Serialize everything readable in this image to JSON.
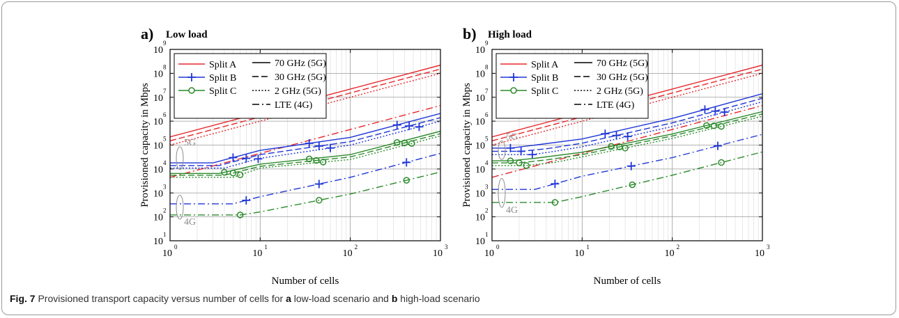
{
  "figure": {
    "caption": {
      "fig_label": "Fig. 7",
      "text_1": "Provisioned transport capacity versus number of cells for",
      "label_a": "a",
      "text_2": "low-load scenario and",
      "label_b": "b",
      "text_3": "high-load scenario"
    }
  },
  "chart_data": [
    {
      "type": "line",
      "panel_letter": "a)",
      "title": "Low load",
      "xlabel": "Number of cells",
      "ylabel": "Provisioned capacity in Mbps",
      "xscale": "log",
      "yscale": "log",
      "xlim": [
        1,
        1000
      ],
      "ylim": [
        10,
        1000000000
      ],
      "x_ticks": [
        1,
        10,
        100,
        1000
      ],
      "y_ticks": [
        10,
        100,
        1000,
        10000,
        100000,
        1000000,
        10000000,
        100000000,
        1000000000
      ],
      "grid": true,
      "legend_position": "top-left",
      "legend_splits": [
        {
          "name": "Split A",
          "color": "#e8262a",
          "marker": "none"
        },
        {
          "name": "Split B",
          "color": "#1f36d6",
          "marker": "plus"
        },
        {
          "name": "Split C",
          "color": "#2a8a2a",
          "marker": "circle"
        }
      ],
      "legend_techs": [
        {
          "name": "70 GHz (5G)",
          "dash": "solid"
        },
        {
          "name": "30 GHz (5G)",
          "dash": "dashed"
        },
        {
          "name": "2 GHz (5G)",
          "dash": "dotted"
        },
        {
          "name": "LTE (4G)",
          "dash": "dashdot"
        }
      ],
      "annotations": [
        "5G",
        "4G"
      ],
      "annotation_ranges": [
        [
          85000,
          9500
        ],
        [
          800,
          80
        ]
      ],
      "series": [
        {
          "split": "A",
          "tech": "70 GHz",
          "points": [
            [
              1,
              220000
            ],
            [
              1000,
              220000000
            ]
          ]
        },
        {
          "split": "A",
          "tech": "30 GHz",
          "points": [
            [
              1,
              150000
            ],
            [
              1000,
              150000000
            ]
          ]
        },
        {
          "split": "A",
          "tech": "2 GHz",
          "points": [
            [
              1,
              100000
            ],
            [
              1000,
              100000000
            ]
          ]
        },
        {
          "split": "A",
          "tech": "LTE",
          "points": [
            [
              1,
              4500
            ],
            [
              1000,
              4500000
            ]
          ]
        },
        {
          "split": "B",
          "tech": "70 GHz",
          "points": [
            [
              1,
              18000
            ],
            [
              3,
              18000
            ],
            [
              10,
              60000
            ],
            [
              100,
              210000
            ],
            [
              1000,
              2100000
            ]
          ],
          "markers_x": [
            5,
            35,
            330
          ]
        },
        {
          "split": "B",
          "tech": "30 GHz",
          "points": [
            [
              1,
              14000
            ],
            [
              3.5,
              14000
            ],
            [
              10,
              40000
            ],
            [
              100,
              140000
            ],
            [
              1000,
              1400000
            ]
          ],
          "markers_x": [
            7,
            45,
            450
          ]
        },
        {
          "split": "B",
          "tech": "2 GHz",
          "points": [
            [
              1,
              11000
            ],
            [
              4,
              11000
            ],
            [
              10,
              28000
            ],
            [
              100,
              100000
            ],
            [
              1000,
              1000000
            ]
          ],
          "markers_x": [
            9.5,
            60,
            580
          ]
        },
        {
          "split": "B",
          "tech": "LTE",
          "points": [
            [
              1,
              350
            ],
            [
              5,
              350
            ],
            [
              10,
              700
            ],
            [
              100,
              4500
            ],
            [
              1000,
              45000
            ]
          ],
          "markers_x": [
            7,
            45,
            420
          ]
        },
        {
          "split": "C",
          "tech": "70 GHz",
          "points": [
            [
              1,
              6500
            ],
            [
              3.5,
              6500
            ],
            [
              10,
              16000
            ],
            [
              100,
              40000
            ],
            [
              1000,
              380000
            ]
          ],
          "markers_x": [
            4,
            35,
            330
          ]
        },
        {
          "split": "C",
          "tech": "30 GHz",
          "points": [
            [
              1,
              5500
            ],
            [
              4,
              5500
            ],
            [
              10,
              13000
            ],
            [
              100,
              32000
            ],
            [
              1000,
              300000
            ]
          ],
          "markers_x": [
            5,
            42,
            400
          ]
        },
        {
          "split": "C",
          "tech": "2 GHz",
          "points": [
            [
              1,
              4500
            ],
            [
              5,
              4500
            ],
            [
              10,
              11000
            ],
            [
              100,
              25000
            ],
            [
              1000,
              240000
            ]
          ],
          "markers_x": [
            6,
            50,
            480
          ]
        },
        {
          "split": "C",
          "tech": "LTE",
          "points": [
            [
              1,
              120
            ],
            [
              6,
              120
            ],
            [
              10,
              160
            ],
            [
              100,
              900
            ],
            [
              1000,
              7500
            ]
          ],
          "markers_x": [
            6,
            45,
            420
          ]
        }
      ]
    },
    {
      "type": "line",
      "panel_letter": "b)",
      "title": "High load",
      "xlabel": "Number of cells",
      "ylabel": "Provisioned capacity in Mbps",
      "xscale": "log",
      "yscale": "log",
      "xlim": [
        1,
        1000
      ],
      "ylim": [
        10,
        1000000000
      ],
      "x_ticks": [
        1,
        10,
        100,
        1000
      ],
      "y_ticks": [
        10,
        100,
        1000,
        10000,
        100000,
        1000000,
        10000000,
        100000000,
        1000000000
      ],
      "grid": true,
      "legend_position": "top-left",
      "legend_splits": [
        {
          "name": "Split A",
          "color": "#e8262a",
          "marker": "none"
        },
        {
          "name": "Split B",
          "color": "#1f36d6",
          "marker": "plus"
        },
        {
          "name": "Split C",
          "color": "#2a8a2a",
          "marker": "circle"
        }
      ],
      "legend_techs": [
        {
          "name": "70 GHz (5G)",
          "dash": "solid"
        },
        {
          "name": "30 GHz (5G)",
          "dash": "dashed"
        },
        {
          "name": "2 GHz (5G)",
          "dash": "dotted"
        },
        {
          "name": "LTE (4G)",
          "dash": "dashdot"
        }
      ],
      "annotations": [
        "5G",
        "4G"
      ],
      "annotation_ranges": [
        [
          150000,
          25000
        ],
        [
          4000,
          250
        ]
      ],
      "series": [
        {
          "split": "A",
          "tech": "70 GHz",
          "points": [
            [
              1,
              220000
            ],
            [
              1000,
              220000000
            ]
          ]
        },
        {
          "split": "A",
          "tech": "30 GHz",
          "points": [
            [
              1,
              150000
            ],
            [
              1000,
              150000000
            ]
          ]
        },
        {
          "split": "A",
          "tech": "2 GHz",
          "points": [
            [
              1,
              100000
            ],
            [
              1000,
              100000000
            ]
          ]
        },
        {
          "split": "A",
          "tech": "LTE",
          "points": [
            [
              1,
              4500
            ],
            [
              1000,
              4500000
            ]
          ]
        },
        {
          "split": "B",
          "tech": "70 GHz",
          "points": [
            [
              1,
              75000
            ],
            [
              1.6,
              75000
            ],
            [
              3,
              100000
            ],
            [
              10,
              180000
            ],
            [
              100,
              1300000
            ],
            [
              1000,
              14000000
            ]
          ],
          "markers_x": [
            1.6,
            18,
            230
          ]
        },
        {
          "split": "B",
          "tech": "30 GHz",
          "points": [
            [
              1,
              55000
            ],
            [
              2.1,
              55000
            ],
            [
              4,
              70000
            ],
            [
              10,
              120000
            ],
            [
              100,
              850000
            ],
            [
              1000,
              9000000
            ]
          ],
          "markers_x": [
            2.1,
            24,
            300
          ]
        },
        {
          "split": "B",
          "tech": "2 GHz",
          "points": [
            [
              1,
              40000
            ],
            [
              2.8,
              40000
            ],
            [
              5,
              55000
            ],
            [
              10,
              85000
            ],
            [
              100,
              600000
            ],
            [
              1000,
              6500000
            ]
          ],
          "markers_x": [
            2.8,
            32,
            380
          ]
        },
        {
          "split": "B",
          "tech": "LTE",
          "points": [
            [
              1,
              1400
            ],
            [
              3,
              1400
            ],
            [
              10,
              5000
            ],
            [
              100,
              30000
            ],
            [
              1000,
              280000
            ]
          ],
          "markers_x": [
            5,
            35,
            320
          ]
        },
        {
          "split": "C",
          "tech": "70 GHz",
          "points": [
            [
              1,
              22000
            ],
            [
              1.6,
              22000
            ],
            [
              3,
              28000
            ],
            [
              10,
              50000
            ],
            [
              100,
              290000
            ],
            [
              1000,
              2500000
            ]
          ],
          "markers_x": [
            1.6,
            21,
            240
          ]
        },
        {
          "split": "C",
          "tech": "30 GHz",
          "points": [
            [
              1,
              18000
            ],
            [
              2,
              18000
            ],
            [
              4,
              24000
            ],
            [
              10,
              40000
            ],
            [
              100,
              240000
            ],
            [
              1000,
              2000000
            ]
          ],
          "markers_x": [
            2,
            26,
            290
          ]
        },
        {
          "split": "C",
          "tech": "2 GHz",
          "points": [
            [
              1,
              14000
            ],
            [
              2.4,
              14000
            ],
            [
              5,
              19000
            ],
            [
              10,
              32000
            ],
            [
              100,
              190000
            ],
            [
              1000,
              1600000
            ]
          ],
          "markers_x": [
            2.4,
            30,
            350
          ]
        },
        {
          "split": "C",
          "tech": "LTE",
          "points": [
            [
              1,
              400
            ],
            [
              5,
              400
            ],
            [
              10,
              700
            ],
            [
              100,
              5500
            ],
            [
              1000,
              52000
            ]
          ],
          "markers_x": [
            5,
            36,
            350
          ]
        }
      ]
    }
  ]
}
